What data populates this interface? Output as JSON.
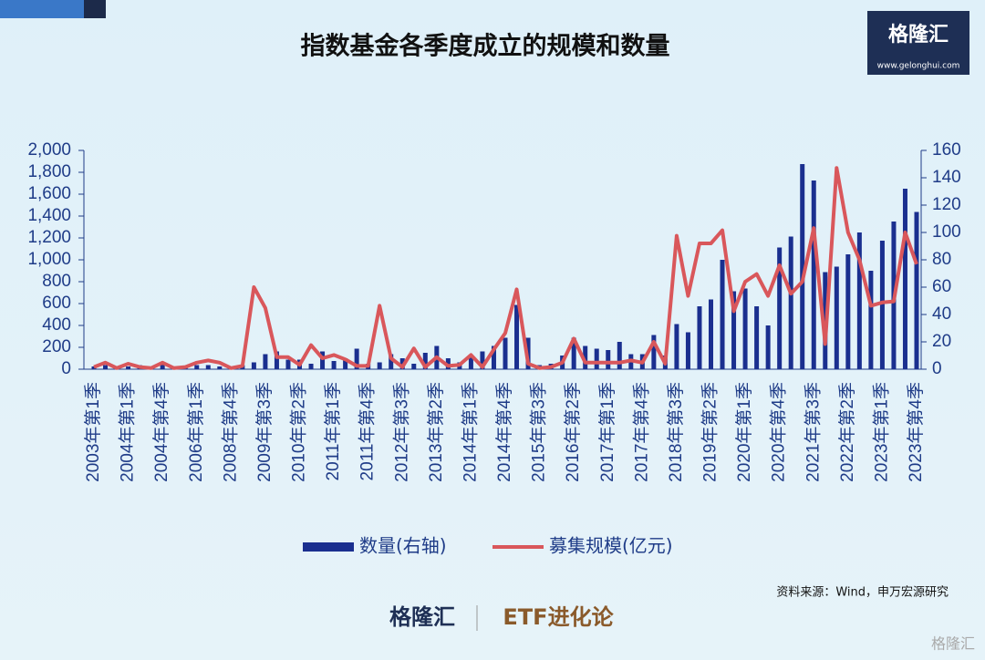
{
  "chart_data": {
    "type": "bar_line",
    "title": "指数基金各季度成立的规模和数量",
    "categories": [
      "2003年第1季",
      null,
      null,
      "2004年第1季",
      null,
      null,
      "2004年第4季",
      null,
      null,
      "2006年第1季",
      null,
      null,
      "2008年第4季",
      null,
      null,
      "2009年第3季",
      null,
      null,
      "2010年第2季",
      null,
      null,
      "2011年第1季",
      null,
      null,
      "2011年第4季",
      null,
      null,
      "2012年第3季",
      null,
      null,
      "2013年第2季",
      null,
      null,
      "2014年第1季",
      null,
      null,
      "2014年第4季",
      null,
      null,
      "2015年第3季",
      null,
      null,
      "2016年第2季",
      null,
      null,
      "2017年第1季",
      null,
      null,
      "2017年第4季",
      null,
      null,
      "2018年第3季",
      null,
      null,
      "2019年第2季",
      null,
      null,
      "2020年第1季",
      null,
      null,
      "2020年第4季",
      null,
      null,
      "2021年第3季",
      null,
      null,
      "2022年第2季",
      null,
      null,
      "2023年第1季",
      null,
      null,
      "2023年第4季"
    ],
    "series": [
      {
        "name": "数量(右轴)",
        "type": "bar",
        "axis": "y2",
        "color": "#1a2f8f",
        "values": [
          2,
          3,
          2,
          2,
          3,
          2,
          3,
          2,
          2,
          3,
          3,
          2,
          2,
          3,
          5,
          11,
          13,
          7,
          7,
          4,
          13,
          6,
          8,
          15,
          4,
          5,
          11,
          8,
          4,
          12,
          17,
          8,
          5,
          9,
          13,
          17,
          23,
          47,
          23,
          3,
          4,
          10,
          23,
          17,
          15,
          14,
          20,
          11,
          11,
          25,
          10,
          33,
          27,
          46,
          51,
          80,
          57,
          59,
          46,
          32,
          89,
          97,
          150,
          138,
          71,
          75,
          84,
          100,
          72,
          94,
          108,
          132,
          115
        ]
      },
      {
        "name": "募集规模(亿元)",
        "type": "line",
        "axis": "y",
        "color": "#d9575b",
        "values": [
          20,
          60,
          10,
          50,
          20,
          10,
          60,
          10,
          20,
          60,
          80,
          60,
          10,
          30,
          750,
          560,
          110,
          110,
          40,
          220,
          100,
          130,
          90,
          30,
          30,
          580,
          100,
          20,
          190,
          20,
          110,
          30,
          40,
          130,
          20,
          180,
          330,
          730,
          50,
          10,
          20,
          60,
          280,
          60,
          60,
          60,
          60,
          80,
          60,
          250,
          50,
          1220,
          670,
          1150,
          1150,
          1270,
          530,
          800,
          870,
          670,
          950,
          690,
          800,
          1290,
          230,
          1840,
          1250,
          1000,
          580,
          610,
          620,
          1250,
          960
        ]
      }
    ],
    "ylim": [
      0,
      2000
    ],
    "yticks": [
      0,
      200,
      400,
      600,
      800,
      {
        "value": 1000,
        "label": "1,000"
      },
      {
        "value": 1200,
        "label": "1,200"
      },
      {
        "value": 1400,
        "label": "1,400"
      },
      {
        "value": 1600,
        "label": "1,600"
      },
      {
        "value": 1800,
        "label": "1,800"
      },
      {
        "value": 2000,
        "label": "2,000"
      }
    ],
    "y2lim": [
      0,
      160
    ],
    "y2ticks": [
      0,
      20,
      40,
      60,
      80,
      100,
      120,
      140,
      160
    ],
    "source": "资料来源：Wind，申万宏源研究"
  },
  "logo": {
    "name": "格隆汇",
    "url": "www.gelonghui.com",
    "brand": "ETF进化论"
  }
}
